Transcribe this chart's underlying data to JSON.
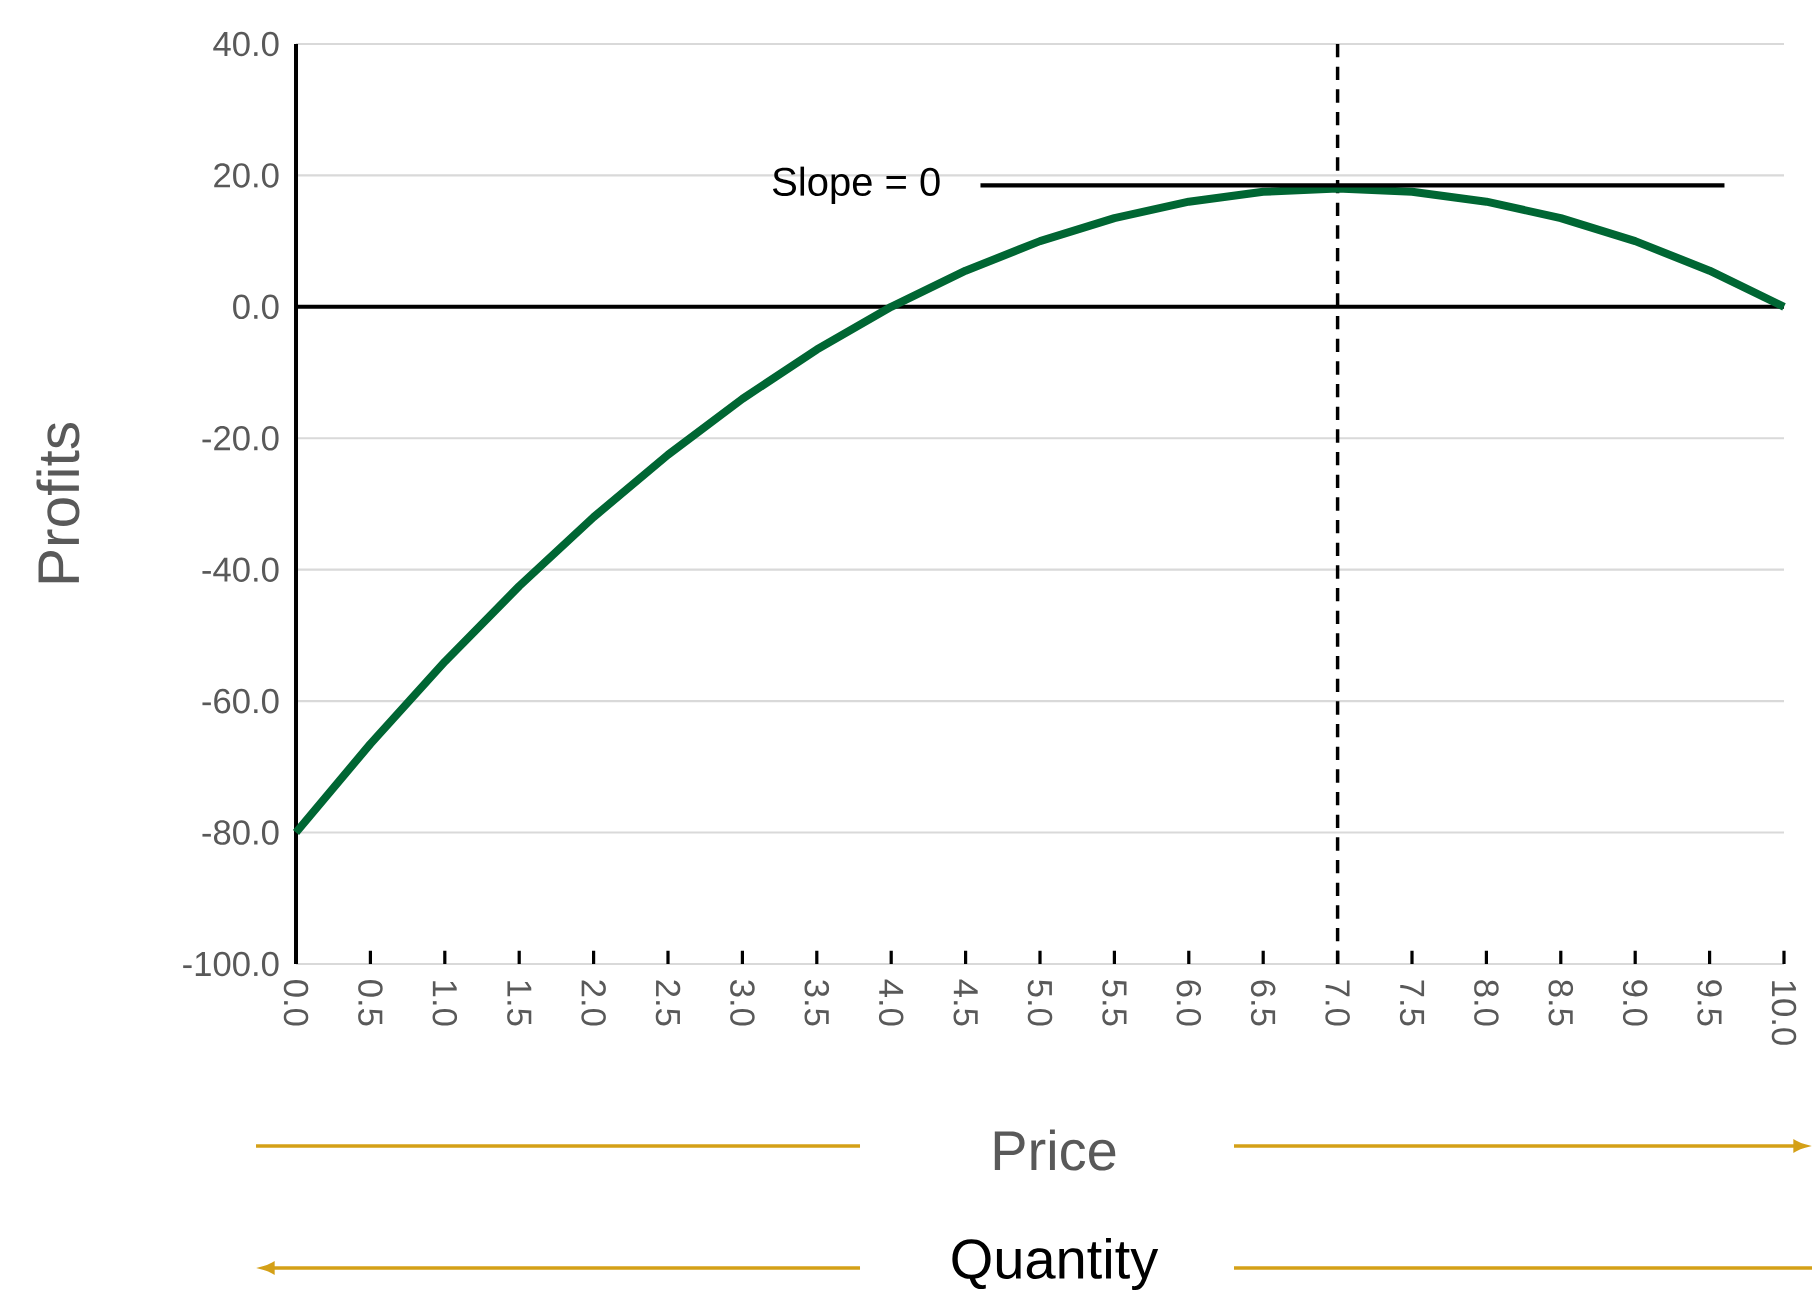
{
  "chart_data": {
    "type": "line",
    "xlabel": "Price",
    "ylabel": "Profits",
    "annotations": [
      "Quantity"
    ],
    "xlim": [
      0,
      10
    ],
    "ylim": [
      -100,
      40
    ],
    "xticks": [
      {
        "value": 0,
        "label": "0.0"
      },
      {
        "value": 0.5,
        "label": "0.5"
      },
      {
        "value": 1,
        "label": "1.0"
      },
      {
        "value": 1.5,
        "label": "1.5"
      },
      {
        "value": 2,
        "label": "2.0"
      },
      {
        "value": 2.5,
        "label": "2.5"
      },
      {
        "value": 3,
        "label": "3.0"
      },
      {
        "value": 3.5,
        "label": "3.5"
      },
      {
        "value": 4,
        "label": "4.0"
      },
      {
        "value": 4.5,
        "label": "4.5"
      },
      {
        "value": 5,
        "label": "5.0"
      },
      {
        "value": 5.5,
        "label": "5.5"
      },
      {
        "value": 6,
        "label": "6.0"
      },
      {
        "value": 6.5,
        "label": "6.5"
      },
      {
        "value": 7,
        "label": "7.0"
      },
      {
        "value": 7.5,
        "label": "7.5"
      },
      {
        "value": 8,
        "label": "8.0"
      },
      {
        "value": 8.5,
        "label": "8.5"
      },
      {
        "value": 9,
        "label": "9.0"
      },
      {
        "value": 9.5,
        "label": "9.5"
      },
      {
        "value": 10,
        "label": "10.0"
      }
    ],
    "yticks": [
      {
        "value": -100,
        "label": "-100.0"
      },
      {
        "value": -80,
        "label": "-80.0"
      },
      {
        "value": -60,
        "label": "-60.0"
      },
      {
        "value": -40,
        "label": "-40.0"
      },
      {
        "value": -20,
        "label": "-20.0"
      },
      {
        "value": 0,
        "label": "0.0"
      },
      {
        "value": 20,
        "label": "20.0"
      },
      {
        "value": 40,
        "label": "40.0"
      }
    ],
    "grid": "y",
    "marker": "none",
    "ref_lines": [
      {
        "axis": "x",
        "value": 7,
        "color": "#000000",
        "line_style": "dashed"
      }
    ],
    "series": [
      {
        "color": "#006633",
        "line_style": "solid",
        "x": [
          0,
          0.5,
          1,
          1.5,
          2,
          2.5,
          3,
          3.5,
          4,
          4.5,
          5,
          5.5,
          6,
          6.5,
          7,
          7.5,
          8,
          8.5,
          9,
          9.5,
          10
        ],
        "values": [
          -80,
          -66.5,
          -54,
          -42.5,
          -32,
          -22.5,
          -14,
          -6.5,
          0,
          5.5,
          10,
          13.5,
          16,
          17.5,
          18,
          17.5,
          16,
          13.5,
          10,
          5.5,
          0
        ]
      },
      {
        "name": "Slope = 0",
        "color": "#000000",
        "line_style": "solid",
        "x": [
          4.6,
          9.6
        ],
        "values": [
          18.5,
          18.5
        ]
      }
    ]
  }
}
